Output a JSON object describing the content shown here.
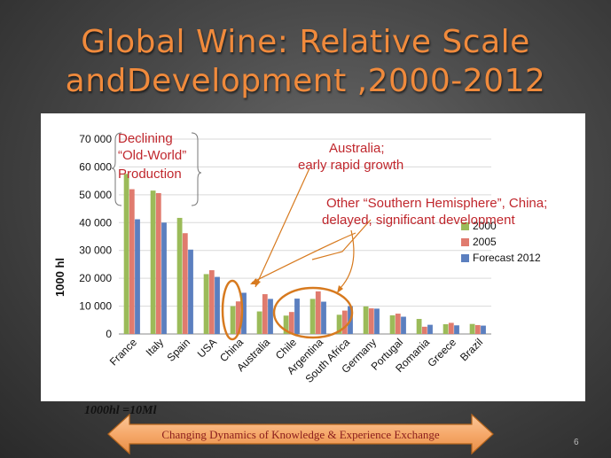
{
  "slide": {
    "title_line1": "Global Wine: Relative Scale",
    "title_line2": "andDevelopment ,2000-2012",
    "unit_note": "1000hl =10Ml",
    "arrow_banner": "Changing Dynamics of Knowledge & Experience Exchange",
    "slide_number": "6"
  },
  "colors": {
    "title": "#f08a3c",
    "annotation": "#c0272d",
    "series_2000": "#9bbb59",
    "series_2005": "#e07b6e",
    "series_2012": "#5b7fbf",
    "banner_fill": "#f6a96b"
  },
  "chart_data": {
    "type": "bar",
    "ylabel": "1000 hl",
    "ylim": [
      0,
      70000
    ],
    "yticks": [
      "0",
      "10 000",
      "20 000",
      "30 000",
      "40 000",
      "50 000",
      "60 000",
      "70 000"
    ],
    "grid": true,
    "legend_position": "right",
    "categories": [
      "France",
      "Italy",
      "Spain",
      "USA",
      "China",
      "Australia",
      "Chile",
      "Argentina",
      "South Africa",
      "Germany",
      "Portugal",
      "Romania",
      "Greece",
      "Brazil"
    ],
    "series": [
      {
        "name": "2000",
        "values": [
          57500,
          51500,
          41700,
          21500,
          10000,
          8100,
          6600,
          12600,
          6900,
          9900,
          6700,
          5400,
          3500,
          3600
        ]
      },
      {
        "name": "2005",
        "values": [
          52000,
          50600,
          36200,
          22900,
          11700,
          14300,
          7900,
          15300,
          8400,
          9200,
          7300,
          2600,
          4000,
          3200
        ]
      },
      {
        "name": "Forecast 2012",
        "values": [
          41200,
          40000,
          30300,
          20500,
          14800,
          12600,
          12700,
          11600,
          10000,
          9100,
          6200,
          3300,
          3100,
          3000
        ]
      }
    ],
    "annotations": [
      {
        "id": "old_world",
        "lines": [
          "Declining",
          "“Old-World”",
          "Production"
        ]
      },
      {
        "id": "australia",
        "lines": [
          "Australia;",
          "early rapid growth"
        ]
      },
      {
        "id": "southern",
        "lines": [
          "Other “Southern Hemisphere”, China;",
          "delayed, significant development"
        ]
      }
    ]
  }
}
